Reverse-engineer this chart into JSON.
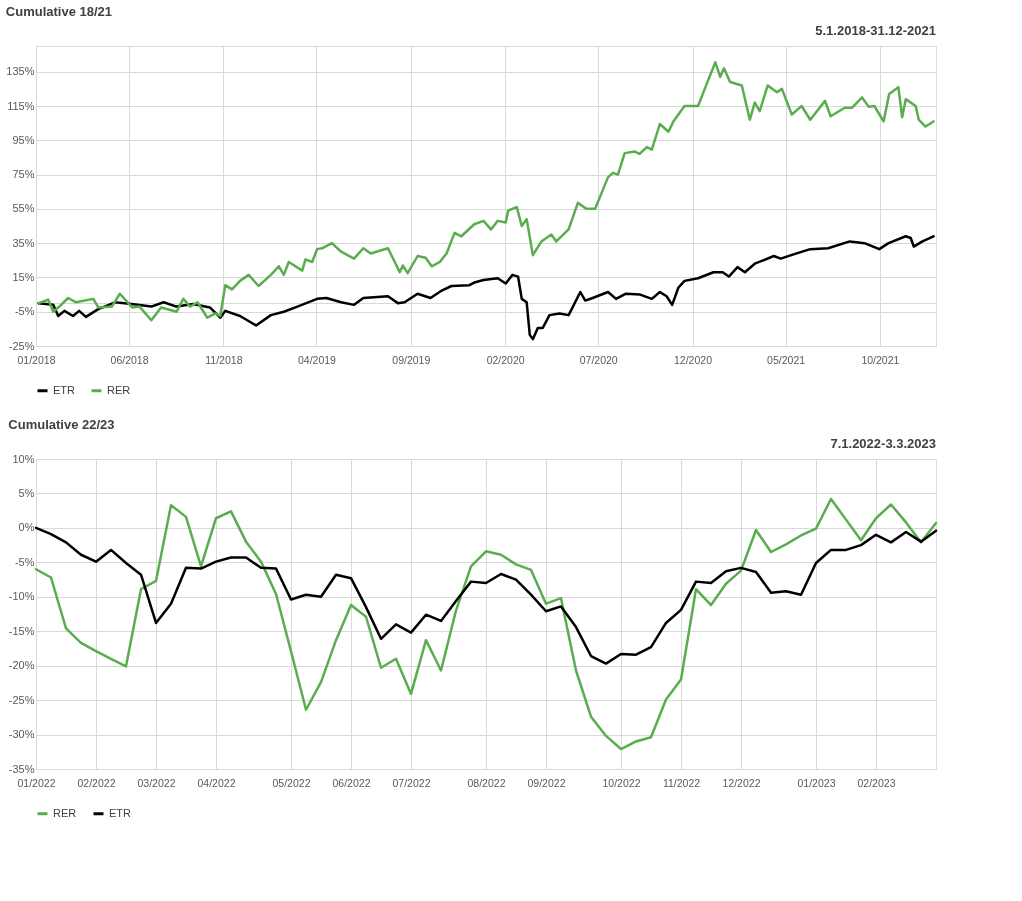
{
  "chart_data": [
    {
      "type": "line",
      "title": "Cumulative 18/21",
      "subtitle": "5.1.2018-31.12-2021",
      "grid": true,
      "legend": "bottom",
      "marker": "none",
      "line_style": "solid",
      "xlim": [
        "2018-01-01",
        "2021-12-31"
      ],
      "xticks": [
        {
          "value": "2018-01-01",
          "label": "01/2018"
        },
        {
          "value": "2018-06-01",
          "label": "06/2018"
        },
        {
          "value": "2018-11-01",
          "label": "11/2018"
        },
        {
          "value": "2019-04-01",
          "label": "04/2019"
        },
        {
          "value": "2019-09-01",
          "label": "09/2019"
        },
        {
          "value": "2020-02-01",
          "label": "02/2020"
        },
        {
          "value": "2020-07-01",
          "label": "07/2020"
        },
        {
          "value": "2020-12-01",
          "label": "12/2020"
        },
        {
          "value": "2021-05-01",
          "label": "05/2021"
        },
        {
          "value": "2021-10-01",
          "label": "10/2021"
        }
      ],
      "ylim": [
        -25,
        150
      ],
      "yticks": [
        {
          "value": -25,
          "label": "-25%"
        },
        {
          "value": -5,
          "label": "-5%"
        },
        {
          "value": 0,
          "label": null
        },
        {
          "value": 15,
          "label": "15%"
        },
        {
          "value": 35,
          "label": "35%"
        },
        {
          "value": 55,
          "label": "55%"
        },
        {
          "value": 75,
          "label": "75%"
        },
        {
          "value": 95,
          "label": "95%"
        },
        {
          "value": 115,
          "label": "115%"
        },
        {
          "value": 135,
          "label": "135%"
        }
      ],
      "series": [
        {
          "name": "ETR",
          "color": "#000000",
          "x": [
            "2018-01-05",
            "2018-01-29",
            "2018-02-06",
            "2018-02-16",
            "2018-03-02",
            "2018-03-12",
            "2018-03-23",
            "2018-04-12",
            "2018-05-09",
            "2018-06-05",
            "2018-07-07",
            "2018-07-27",
            "2018-08-17",
            "2018-09-13",
            "2018-10-10",
            "2018-10-27",
            "2018-11-04",
            "2018-11-28",
            "2018-12-24",
            "2019-01-17",
            "2019-02-07",
            "2019-03-01",
            "2019-04-02",
            "2019-04-17",
            "2019-05-11",
            "2019-06-01",
            "2019-06-16",
            "2019-07-26",
            "2019-08-11",
            "2019-08-22",
            "2019-09-12",
            "2019-10-03",
            "2019-10-22",
            "2019-11-06",
            "2019-12-05",
            "2019-12-13",
            "2019-12-28",
            "2020-01-20",
            "2020-02-02",
            "2020-02-13",
            "2020-02-22",
            "2020-02-28",
            "2020-03-07",
            "2020-03-12",
            "2020-03-17",
            "2020-03-25",
            "2020-04-02",
            "2020-04-13",
            "2020-04-29",
            "2020-05-14",
            "2020-05-19",
            "2020-06-02",
            "2020-06-10",
            "2020-06-22",
            "2020-07-17",
            "2020-07-30",
            "2020-08-15",
            "2020-09-07",
            "2020-09-26",
            "2020-10-09",
            "2020-10-20",
            "2020-10-29",
            "2020-11-08",
            "2020-11-18",
            "2020-12-10",
            "2021-01-04",
            "2021-01-19",
            "2021-01-29",
            "2021-02-12",
            "2021-02-24",
            "2021-03-12",
            "2021-04-12",
            "2021-04-23",
            "2021-05-19",
            "2021-06-10",
            "2021-07-09",
            "2021-08-13",
            "2021-09-06",
            "2021-09-30",
            "2021-10-15",
            "2021-11-12",
            "2021-11-20",
            "2021-11-25",
            "2021-12-09",
            "2021-12-27"
          ],
          "values": [
            0,
            -1,
            -7.5,
            -4.5,
            -7.5,
            -4.5,
            -8,
            -3.5,
            0.5,
            -0.5,
            -2,
            0.5,
            -2,
            -0.5,
            -2.5,
            -8.5,
            -4.5,
            -7.5,
            -13,
            -7,
            -5,
            -2,
            2.5,
            3,
            0.5,
            -1,
            3,
            4,
            0,
            0.5,
            5.5,
            3,
            7.5,
            10,
            10.5,
            12,
            13.5,
            14.5,
            11.5,
            16.5,
            15.5,
            2.5,
            0.5,
            -18.5,
            -21,
            -14.5,
            -14.5,
            -7,
            -6,
            -7,
            -3.5,
            6.5,
            1.5,
            3,
            6.5,
            2.5,
            5.5,
            5,
            2.5,
            6.5,
            4,
            -1,
            9,
            13,
            14.5,
            18,
            18,
            15.5,
            21,
            18,
            23,
            27.5,
            26,
            29,
            31.5,
            32,
            36,
            35,
            31.5,
            35,
            39,
            38,
            33,
            36,
            39
          ]
        },
        {
          "name": "RER",
          "color": "#5aad4e",
          "x": [
            "2018-01-05",
            "2018-01-21",
            "2018-01-29",
            "2018-02-08",
            "2018-02-22",
            "2018-03-07",
            "2018-04-04",
            "2018-04-12",
            "2018-05-04",
            "2018-05-17",
            "2018-06-06",
            "2018-06-18",
            "2018-07-07",
            "2018-07-23",
            "2018-08-17",
            "2018-08-28",
            "2018-09-08",
            "2018-09-20",
            "2018-10-06",
            "2018-10-19",
            "2018-10-27",
            "2018-11-04",
            "2018-11-15",
            "2018-11-28",
            "2018-12-12",
            "2018-12-28",
            "2019-01-17",
            "2019-01-30",
            "2019-02-07",
            "2019-02-15",
            "2019-03-09",
            "2019-03-14",
            "2019-03-25",
            "2019-04-02",
            "2019-04-10",
            "2019-04-26",
            "2019-05-11",
            "2019-06-01",
            "2019-06-16",
            "2019-06-28",
            "2019-07-26",
            "2019-08-06",
            "2019-08-14",
            "2019-08-19",
            "2019-08-27",
            "2019-09-12",
            "2019-09-25",
            "2019-10-05",
            "2019-10-18",
            "2019-10-29",
            "2019-11-11",
            "2019-11-22",
            "2019-12-13",
            "2019-12-28",
            "2020-01-09",
            "2020-01-20",
            "2020-02-02",
            "2020-02-06",
            "2020-02-20",
            "2020-02-28",
            "2020-03-07",
            "2020-03-17",
            "2020-03-31",
            "2020-04-16",
            "2020-04-24",
            "2020-05-14",
            "2020-05-29",
            "2020-06-12",
            "2020-06-26",
            "2020-07-17",
            "2020-07-25",
            "2020-08-02",
            "2020-08-13",
            "2020-08-29",
            "2020-09-06",
            "2020-09-18",
            "2020-09-26",
            "2020-10-09",
            "2020-10-23",
            "2020-10-31",
            "2020-11-18",
            "2020-12-10",
            "2020-12-22",
            "2021-01-07",
            "2021-01-15",
            "2021-01-21",
            "2021-01-31",
            "2021-02-19",
            "2021-03-04",
            "2021-03-12",
            "2021-03-20",
            "2021-04-02",
            "2021-04-17",
            "2021-04-25",
            "2021-05-11",
            "2021-05-27",
            "2021-06-10",
            "2021-07-04",
            "2021-07-13",
            "2021-08-05",
            "2021-08-17",
            "2021-09-02",
            "2021-09-13",
            "2021-09-22",
            "2021-10-07",
            "2021-10-16",
            "2021-10-31",
            "2021-11-06",
            "2021-11-12",
            "2021-11-28",
            "2021-12-03",
            "2021-12-14",
            "2021-12-27"
          ],
          "values": [
            0,
            2,
            -5,
            -2,
            3,
            0.5,
            2.5,
            -2.5,
            -2,
            5.5,
            -2.5,
            -2,
            -10,
            -2.5,
            -5,
            2.5,
            -2,
            0.5,
            -8.5,
            -6,
            -7.5,
            10.5,
            8,
            13,
            16.5,
            10,
            16.5,
            21.5,
            16.5,
            24,
            19,
            25.5,
            24,
            31.5,
            32,
            35,
            30,
            26,
            32,
            29,
            32,
            24,
            18,
            22,
            17.5,
            27.5,
            26.5,
            21.5,
            24,
            29,
            41,
            39,
            46,
            48,
            43,
            48,
            47,
            54,
            56,
            45,
            49,
            28,
            36,
            40,
            36,
            43,
            58.5,
            55,
            55,
            73.5,
            76,
            75,
            87.5,
            88.5,
            87,
            91,
            89.5,
            104.5,
            100,
            106,
            115,
            115,
            126,
            140.5,
            132,
            137,
            129,
            127,
            107,
            117,
            112,
            127,
            123,
            125,
            110,
            115,
            107,
            118,
            109,
            114,
            114,
            120,
            114.5,
            115,
            106,
            122,
            126,
            108.5,
            119,
            115,
            107,
            103,
            106
          ]
        }
      ]
    },
    {
      "type": "line",
      "title": "Cumulative 22/23",
      "subtitle": "7.1.2022-3.3.2023",
      "grid": true,
      "legend": "bottom",
      "marker": "none",
      "line_style": "solid",
      "x": [
        "2022-01-07",
        "2022-01-14",
        "2022-01-21",
        "2022-01-28",
        "2022-02-04",
        "2022-02-11",
        "2022-02-18",
        "2022-02-25",
        "2022-03-04",
        "2022-03-11",
        "2022-03-18",
        "2022-03-25",
        "2022-04-01",
        "2022-04-08",
        "2022-04-15",
        "2022-04-22",
        "2022-04-29",
        "2022-05-06",
        "2022-05-13",
        "2022-05-20",
        "2022-05-27",
        "2022-06-03",
        "2022-06-10",
        "2022-06-17",
        "2022-06-24",
        "2022-07-01",
        "2022-07-08",
        "2022-07-15",
        "2022-07-22",
        "2022-07-29",
        "2022-08-05",
        "2022-08-12",
        "2022-08-19",
        "2022-08-26",
        "2022-09-02",
        "2022-09-09",
        "2022-09-16",
        "2022-09-23",
        "2022-09-30",
        "2022-10-07",
        "2022-10-14",
        "2022-10-21",
        "2022-10-28",
        "2022-11-04",
        "2022-11-11",
        "2022-11-18",
        "2022-11-25",
        "2022-12-02",
        "2022-12-09",
        "2022-12-16",
        "2022-12-23",
        "2022-12-30",
        "2023-01-06",
        "2023-01-13",
        "2023-01-20",
        "2023-01-27",
        "2023-02-03",
        "2023-02-10",
        "2023-02-17",
        "2023-02-24",
        "2023-03-03"
      ],
      "xlim": [
        "2022-01-07",
        "2023-03-03"
      ],
      "xticks": [
        {
          "value": "2022-01-07",
          "label": "01/2022"
        },
        {
          "value": "2022-02-04",
          "label": "02/2022"
        },
        {
          "value": "2022-03-04",
          "label": "03/2022"
        },
        {
          "value": "2022-04-01",
          "label": "04/2022"
        },
        {
          "value": "2022-05-06",
          "label": "05/2022"
        },
        {
          "value": "2022-06-03",
          "label": "06/2022"
        },
        {
          "value": "2022-07-01",
          "label": "07/2022"
        },
        {
          "value": "2022-08-05",
          "label": "08/2022"
        },
        {
          "value": "2022-09-02",
          "label": "09/2022"
        },
        {
          "value": "2022-10-07",
          "label": "10/2022"
        },
        {
          "value": "2022-11-04",
          "label": "11/2022"
        },
        {
          "value": "2022-12-02",
          "label": "12/2022"
        },
        {
          "value": "2023-01-06",
          "label": "01/2023"
        },
        {
          "value": "2023-02-03",
          "label": "02/2023"
        }
      ],
      "ylim": [
        -35,
        10
      ],
      "yticks": [
        {
          "value": -35,
          "label": "-35%"
        },
        {
          "value": -30,
          "label": "-30%"
        },
        {
          "value": -25,
          "label": "-25%"
        },
        {
          "value": -20,
          "label": "-20%"
        },
        {
          "value": -15,
          "label": "-15%"
        },
        {
          "value": -10,
          "label": "-10%"
        },
        {
          "value": -5,
          "label": "-5%"
        },
        {
          "value": 0,
          "label": "0%"
        },
        {
          "value": 5,
          "label": "5%"
        },
        {
          "value": 10,
          "label": "10%"
        }
      ],
      "series": [
        {
          "name": "RER",
          "color": "#5aad4e",
          "values": [
            -6.0,
            -7.2,
            -14.6,
            -16.7,
            -17.9,
            -19.0,
            -20.1,
            -8.9,
            -7.7,
            3.3,
            1.6,
            -5.6,
            1.4,
            2.4,
            -2.0,
            -4.9,
            -9.6,
            -17.9,
            -26.4,
            -22.4,
            -16.3,
            -11.2,
            -12.9,
            -20.3,
            -19.0,
            -24.1,
            -16.3,
            -20.7,
            -12.0,
            -5.6,
            -3.4,
            -3.9,
            -5.3,
            -6.1,
            -11.0,
            -10.2,
            -20.7,
            -27.4,
            -30.2,
            -32.1,
            -31.0,
            -30.4,
            -24.9,
            -22.0,
            -8.9,
            -11.2,
            -8.1,
            -6.2,
            -0.3,
            -3.5,
            -2.4,
            -1.1,
            -0.1,
            4.2,
            1.2,
            -1.8,
            1.4,
            3.4,
            0.8,
            -2.1,
            0.7
          ]
        },
        {
          "name": "ETR",
          "color": "#000000",
          "values": [
            0,
            -0.9,
            -2.1,
            -3.9,
            -4.9,
            -3.2,
            -5.1,
            -6.8,
            -13.8,
            -11.0,
            -5.8,
            -5.9,
            -4.9,
            -4.3,
            -4.3,
            -5.8,
            -5.9,
            -10.4,
            -9.7,
            -10.0,
            -6.8,
            -7.3,
            -11.5,
            -16.1,
            -14.0,
            -15.2,
            -12.6,
            -13.5,
            -10.6,
            -7.8,
            -8.0,
            -6.7,
            -7.5,
            -9.7,
            -12.1,
            -11.4,
            -14.4,
            -18.6,
            -19.7,
            -18.3,
            -18.4,
            -17.3,
            -13.8,
            -11.9,
            -7.8,
            -8.0,
            -6.3,
            -5.8,
            -6.4,
            -9.4,
            -9.2,
            -9.7,
            -5.1,
            -3.2,
            -3.2,
            -2.5,
            -1.0,
            -2.1,
            -0.6,
            -2.0,
            -0.4
          ]
        }
      ]
    }
  ]
}
